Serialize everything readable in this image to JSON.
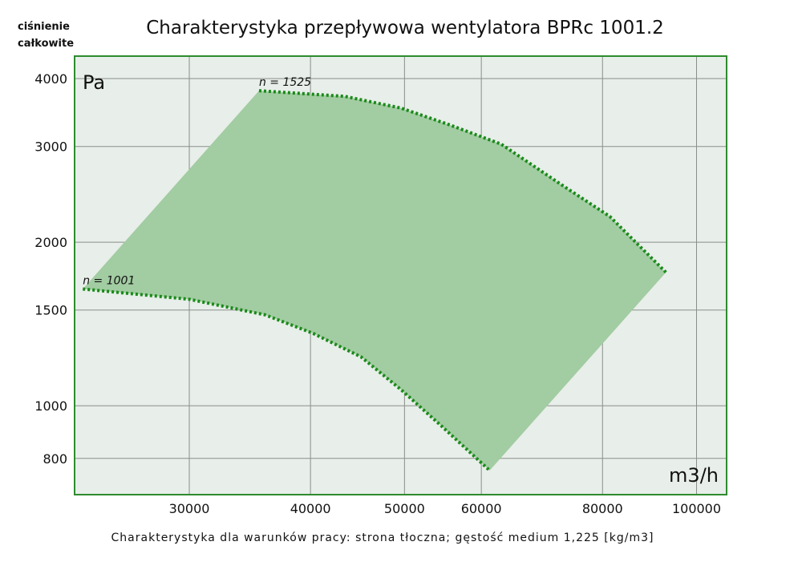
{
  "chart_data": {
    "type": "area",
    "title": "Charakterystyka przepływowa wentylatora BPRc 1001.2",
    "ylabel_line1": "ciśnienie",
    "ylabel_line2": "całkowite",
    "y_unit": "Pa",
    "x_unit": "m3/h",
    "footnote": "Charakterystyka dla warunków pracy: strona tłoczna; gęstość medium 1,225 [kg/m3]",
    "x_scale": "log",
    "y_scale": "log",
    "xlim": [
      22850,
      107400
    ],
    "ylim": [
      686,
      4400
    ],
    "x_ticks": [
      30000,
      40000,
      50000,
      60000,
      80000,
      100000
    ],
    "x_tick_labels": [
      "30000",
      "40000",
      "50000",
      "60000",
      "80000",
      "100000"
    ],
    "y_ticks": [
      800,
      1000,
      1500,
      2000,
      3000,
      4000
    ],
    "y_tick_labels": [
      "800",
      "1000",
      "1500",
      "2000",
      "3000",
      "4000"
    ],
    "grid": true,
    "fill_color": "#a2cca2",
    "line_color": "#1a8a1a",
    "series": [
      {
        "name": "n = 1525",
        "x": [
          35400,
          43400,
          49600,
          55600,
          62900,
          72600,
          81400,
          93000
        ],
        "y": [
          3800,
          3710,
          3530,
          3290,
          3030,
          2550,
          2230,
          1760
        ]
      },
      {
        "name": "n = 1001",
        "x": [
          23300,
          30000,
          35900,
          40200,
          45100,
          49600,
          54500,
          61200
        ],
        "y": [
          1640,
          1570,
          1470,
          1360,
          1230,
          1070,
          920,
          760
        ]
      }
    ]
  }
}
